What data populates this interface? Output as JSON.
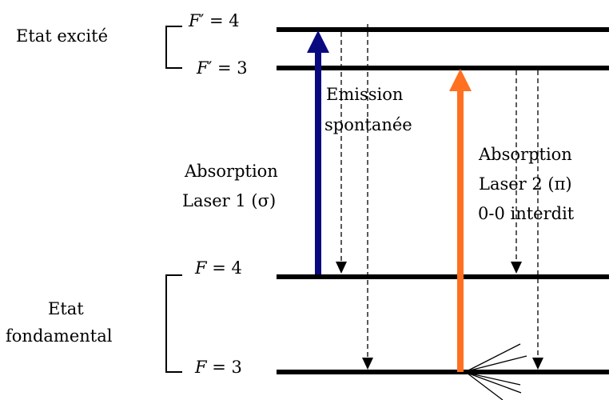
{
  "groups": {
    "excited": "Etat excité",
    "ground_line1": "Etat",
    "ground_line2": "fondamental"
  },
  "levels": {
    "fp4": {
      "var": "F",
      "prime": "′",
      "eq": " = 4"
    },
    "fp3": {
      "var": "F",
      "prime": "′",
      "eq": " = 3"
    },
    "f4": {
      "var": "F",
      "eq": " = 4"
    },
    "f3": {
      "var": "F",
      "eq": " = 3"
    }
  },
  "labels": {
    "emission_line1": "Emission",
    "emission_line2": "spontanée",
    "laser1_line1": "Absorption",
    "laser1_line2": "Laser 1 (σ)",
    "laser2_line1": "Absorption",
    "laser2_line2": "Laser 2 (π)",
    "laser2_line3": "0-0 interdit"
  },
  "colors": {
    "laser1": "#0a0a80",
    "laser2": "#ff7020",
    "levels": "#000000"
  }
}
